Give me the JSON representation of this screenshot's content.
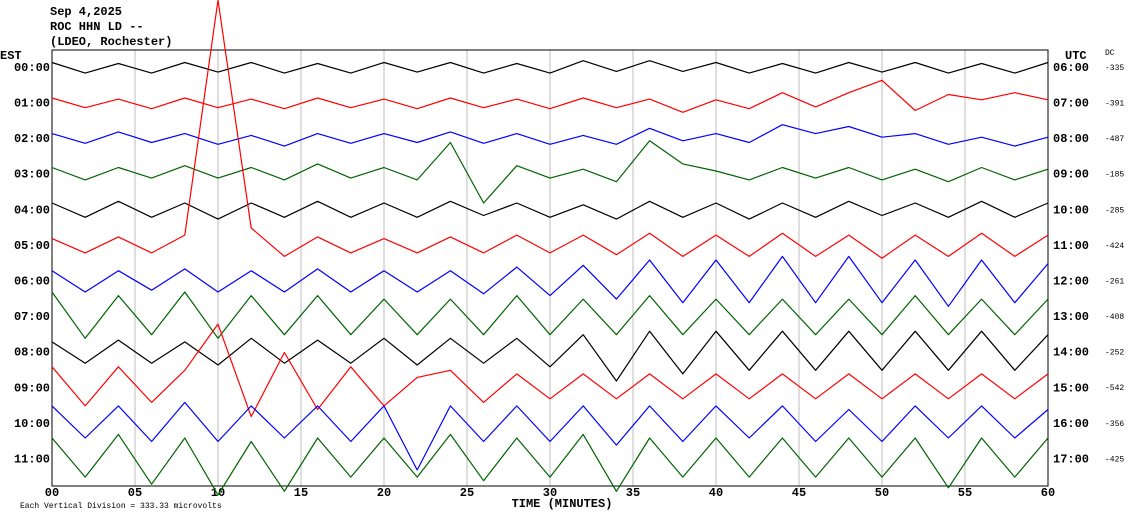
{
  "chart_data": {
    "type": "helicorder",
    "title": "Sep 4,2025",
    "subtitle": "ROC HHN LD --",
    "station": "(LDEO, Rochester)",
    "y_label": "EST",
    "y2_label": "UTC",
    "dc_label": "DC",
    "x_label": "TIME (MINUTES)",
    "scale_note": "Each Vertical Division =  333.33 microvolts",
    "grid": true,
    "xlim": [
      0,
      60
    ],
    "xticks": [
      {
        "value": 0,
        "label": "00"
      },
      {
        "value": 5,
        "label": "05"
      },
      10,
      15,
      20,
      25,
      30,
      35,
      40,
      45,
      50,
      55,
      60
    ],
    "ylim": [
      -0.5,
      11.75
    ],
    "yticks": [
      {
        "value": 0,
        "label": "00:00"
      },
      {
        "value": 1,
        "label": "01:00"
      },
      {
        "value": 2,
        "label": "02:00"
      },
      {
        "value": 3,
        "label": "03:00"
      },
      {
        "value": 4,
        "label": "04:00"
      },
      {
        "value": 5,
        "label": "05:00"
      },
      {
        "value": 6,
        "label": "06:00"
      },
      {
        "value": 7,
        "label": "07:00"
      },
      {
        "value": 8,
        "label": "08:00"
      },
      {
        "value": 9,
        "label": "09:00"
      },
      {
        "value": 10,
        "label": "10:00"
      },
      {
        "value": 11,
        "label": "11:00"
      }
    ],
    "y2ticks": [
      {
        "value": 0,
        "label": "06:00"
      },
      {
        "value": 1,
        "label": "07:00"
      },
      {
        "value": 2,
        "label": "08:00"
      },
      {
        "value": 3,
        "label": "09:00"
      },
      {
        "value": 4,
        "label": "10:00"
      },
      {
        "value": 5,
        "label": "11:00"
      },
      {
        "value": 6,
        "label": "12:00"
      },
      {
        "value": 7,
        "label": "13:00"
      },
      {
        "value": 8,
        "label": "14:00"
      },
      {
        "value": 9,
        "label": "15:00"
      },
      {
        "value": 10,
        "label": "16:00"
      },
      {
        "value": 11,
        "label": "17:00"
      }
    ],
    "dc_offsets": [
      -335,
      -391,
      -487,
      -185,
      -285,
      -424,
      -261,
      -408,
      -252,
      -542,
      -356,
      -425
    ],
    "x": [
      0,
      2,
      4,
      6,
      8,
      10,
      12,
      14,
      16,
      18,
      20,
      22,
      24,
      26,
      28,
      30,
      32,
      34,
      36,
      38,
      40,
      42,
      44,
      46,
      48,
      50,
      52,
      54,
      56,
      58,
      60
    ],
    "series": [
      {
        "color": "#000000",
        "values": [
          0.15,
          -0.15,
          0.12,
          -0.15,
          0.15,
          -0.12,
          0.15,
          -0.15,
          0.12,
          -0.15,
          0.15,
          -0.12,
          0.15,
          -0.15,
          0.12,
          -0.15,
          0.2,
          -0.1,
          0.2,
          -0.1,
          0.15,
          -0.15,
          0.12,
          -0.15,
          0.15,
          -0.12,
          0.15,
          -0.15,
          0.12,
          -0.15,
          0.15
        ]
      },
      {
        "color": "#ff0000",
        "values": [
          0.15,
          -0.12,
          0.12,
          -0.15,
          0.15,
          -0.12,
          0.12,
          -0.15,
          0.15,
          -0.12,
          0.12,
          -0.15,
          0.15,
          -0.12,
          0.12,
          -0.15,
          0.15,
          -0.12,
          0.12,
          -0.25,
          0.1,
          -0.15,
          0.3,
          -0.1,
          0.3,
          0.65,
          -0.2,
          0.25,
          0.1,
          0.3,
          0.1
        ]
      },
      {
        "color": "#0000ff",
        "values": [
          0.15,
          -0.12,
          0.2,
          -0.1,
          0.15,
          -0.15,
          0.1,
          -0.2,
          0.15,
          -0.12,
          0.15,
          -0.1,
          0.2,
          -0.12,
          0.15,
          -0.15,
          0.1,
          -0.15,
          0.3,
          -0.05,
          0.15,
          -0.1,
          0.4,
          0.15,
          0.35,
          0.05,
          0.15,
          -0.15,
          0.05,
          -0.2,
          0.05
        ]
      },
      {
        "color": "#006400",
        "values": [
          0.2,
          -0.15,
          0.2,
          -0.1,
          0.25,
          -0.1,
          0.2,
          -0.15,
          0.3,
          -0.1,
          0.2,
          -0.15,
          0.9,
          -0.8,
          0.25,
          -0.1,
          0.15,
          -0.2,
          0.95,
          0.3,
          0.1,
          -0.15,
          0.2,
          -0.1,
          0.2,
          -0.15,
          0.15,
          -0.2,
          0.2,
          -0.15,
          0.15
        ]
      },
      {
        "color": "#000000",
        "values": [
          0.2,
          -0.2,
          0.25,
          -0.2,
          0.2,
          -0.25,
          0.2,
          -0.2,
          0.25,
          -0.2,
          0.2,
          -0.2,
          0.25,
          -0.15,
          0.2,
          -0.2,
          0.15,
          -0.25,
          0.25,
          -0.2,
          0.2,
          -0.25,
          0.2,
          -0.2,
          0.25,
          -0.15,
          0.2,
          -0.2,
          0.25,
          -0.2,
          0.2
        ]
      },
      {
        "color": "#ff0000",
        "values": [
          0.2,
          -0.2,
          0.25,
          -0.2,
          0.3,
          6.9,
          0.5,
          -0.3,
          0.25,
          -0.2,
          0.2,
          -0.2,
          0.25,
          -0.2,
          0.3,
          -0.2,
          0.3,
          -0.25,
          0.35,
          -0.3,
          0.3,
          -0.3,
          0.35,
          -0.3,
          0.3,
          -0.35,
          0.3,
          -0.3,
          0.35,
          -0.3,
          0.3
        ]
      },
      {
        "color": "#0000ff",
        "values": [
          0.3,
          -0.3,
          0.3,
          -0.25,
          0.35,
          -0.3,
          0.3,
          -0.3,
          0.35,
          -0.3,
          0.3,
          -0.3,
          0.3,
          -0.35,
          0.4,
          -0.4,
          0.45,
          -0.5,
          0.6,
          -0.6,
          0.6,
          -0.6,
          0.7,
          -0.6,
          0.7,
          -0.6,
          0.6,
          -0.7,
          0.6,
          -0.6,
          0.5
        ]
      },
      {
        "color": "#006400",
        "values": [
          0.7,
          -0.6,
          0.6,
          -0.5,
          0.7,
          -0.6,
          0.6,
          -0.5,
          0.6,
          -0.5,
          0.5,
          -0.5,
          0.5,
          -0.5,
          0.6,
          -0.5,
          0.5,
          -0.5,
          0.6,
          -0.5,
          0.5,
          -0.5,
          0.5,
          -0.5,
          0.5,
          -0.5,
          0.6,
          -0.5,
          0.5,
          -0.5,
          0.5
        ]
      },
      {
        "color": "#000000",
        "values": [
          0.3,
          -0.3,
          0.35,
          -0.3,
          0.3,
          -0.35,
          0.4,
          -0.3,
          0.35,
          -0.3,
          0.4,
          -0.35,
          0.4,
          -0.3,
          0.4,
          -0.4,
          0.5,
          -0.8,
          0.6,
          -0.6,
          0.6,
          -0.5,
          0.6,
          -0.5,
          0.6,
          -0.5,
          0.6,
          -0.5,
          0.6,
          -0.5,
          0.5
        ]
      },
      {
        "color": "#ff0000",
        "values": [
          0.6,
          -0.5,
          0.6,
          -0.4,
          0.5,
          1.8,
          -0.8,
          1.0,
          -0.6,
          0.6,
          -0.5,
          0.3,
          0.5,
          -0.4,
          0.4,
          -0.3,
          0.4,
          -0.3,
          0.4,
          -0.3,
          0.4,
          -0.3,
          0.4,
          -0.3,
          0.4,
          -0.3,
          0.4,
          -0.3,
          0.4,
          -0.3,
          0.4
        ]
      },
      {
        "color": "#0000ff",
        "values": [
          0.5,
          -0.4,
          0.5,
          -0.5,
          0.6,
          -0.5,
          0.5,
          -0.4,
          0.5,
          -0.5,
          0.5,
          -1.3,
          0.5,
          -0.5,
          0.5,
          -0.5,
          0.5,
          -0.6,
          0.5,
          -0.5,
          0.5,
          -0.4,
          0.5,
          -0.5,
          0.4,
          -0.5,
          0.5,
          -0.4,
          0.5,
          -0.4,
          0.4
        ]
      },
      {
        "color": "#006400",
        "values": [
          0.6,
          -0.5,
          0.7,
          -0.7,
          0.6,
          -1.0,
          0.5,
          -0.9,
          0.6,
          -0.5,
          0.6,
          -0.5,
          0.7,
          -0.6,
          0.6,
          -0.5,
          0.7,
          -0.9,
          0.6,
          -0.5,
          0.6,
          -0.5,
          0.6,
          -0.5,
          0.6,
          -0.5,
          0.6,
          -0.8,
          0.6,
          -0.5,
          0.6
        ]
      }
    ]
  }
}
